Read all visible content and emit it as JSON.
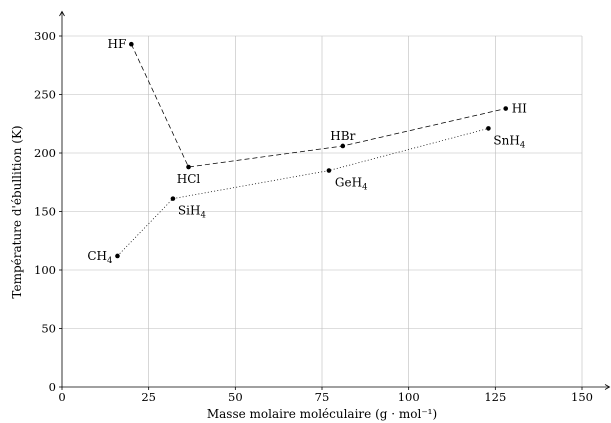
{
  "chart_data": {
    "type": "scatter",
    "xlabel": "Masse molaire moléculaire (g · mol⁻¹)",
    "ylabel": "Température d'ébullition (K)",
    "xlim": [
      0,
      150
    ],
    "ylim": [
      0,
      300
    ],
    "x_ticks": [
      0,
      25,
      50,
      75,
      100,
      125,
      150
    ],
    "y_ticks": [
      0,
      50,
      100,
      150,
      200,
      250,
      300
    ],
    "grid": true,
    "series": [
      {
        "line_style": "dashed",
        "points": [
          {
            "label": "HF",
            "x": 20,
            "y": 293
          },
          {
            "label": "HCl",
            "x": 36.5,
            "y": 188
          },
          {
            "label": "HBr",
            "x": 81,
            "y": 206
          },
          {
            "label": "HI",
            "x": 128,
            "y": 238
          }
        ]
      },
      {
        "line_style": "dotted",
        "points": [
          {
            "label": "CH4",
            "x": 16,
            "y": 112
          },
          {
            "label": "SiH4",
            "x": 32,
            "y": 161
          },
          {
            "label": "GeH4",
            "x": 77,
            "y": 185
          },
          {
            "label": "SnH4",
            "x": 123,
            "y": 221
          }
        ]
      }
    ]
  }
}
